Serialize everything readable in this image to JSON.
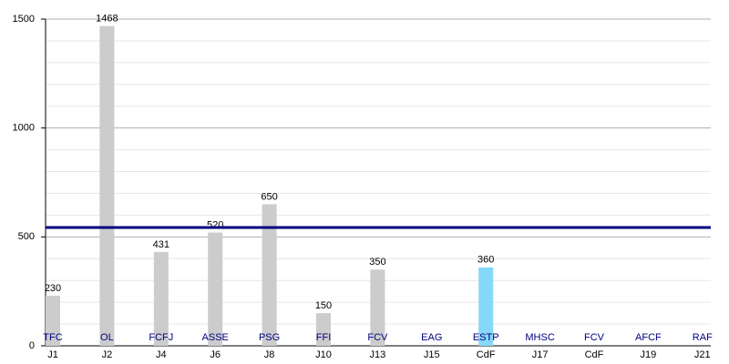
{
  "chart_data": {
    "type": "bar",
    "categories": [
      "J1",
      "J2",
      "J4",
      "J6",
      "J8",
      "J10",
      "J13",
      "J15",
      "CdF",
      "J17",
      "CdF",
      "J19",
      "J21"
    ],
    "opponents": [
      "TFC",
      "OL",
      "FCFJ",
      "ASSE",
      "PSG",
      "FFI",
      "FCV",
      "EAG",
      "ESTP",
      "MHSC",
      "FCV",
      "AFCF",
      "RAF"
    ],
    "values": [
      230,
      1468,
      431,
      520,
      650,
      150,
      350,
      null,
      360,
      null,
      null,
      null,
      null
    ],
    "colors": [
      "#cccccc",
      "#cccccc",
      "#cccccc",
      "#cccccc",
      "#cccccc",
      "#cccccc",
      "#cccccc",
      "#cccccc",
      "#87d8f8",
      "#cccccc",
      "#cccccc",
      "#cccccc",
      "#cccccc"
    ],
    "ylim": [
      0,
      1500
    ],
    "yticks": [
      0,
      500,
      1000,
      1500
    ],
    "minor_yticks": [
      100,
      200,
      300,
      400,
      600,
      700,
      800,
      900,
      1100,
      1200,
      1300,
      1400
    ],
    "reference_line": 543,
    "reference_color": "#000080",
    "opponent_color": "#000080",
    "grid": true
  }
}
